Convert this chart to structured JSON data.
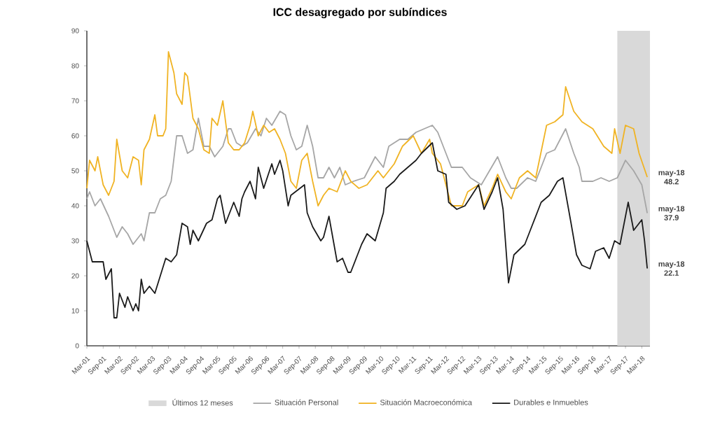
{
  "chart_data": {
    "type": "line",
    "title": "ICC desagregado por subíndices",
    "xlim": [
      "2001-03",
      "2018-06"
    ],
    "ylim": [
      0,
      90
    ],
    "yticks": [
      0,
      10,
      20,
      30,
      40,
      50,
      60,
      70,
      80,
      90
    ],
    "xticks": [
      {
        "value": "2001-03",
        "label": "Mar-01"
      },
      {
        "value": "2001-09",
        "label": "Sep-01"
      },
      {
        "value": "2002-03",
        "label": "Mar-02"
      },
      {
        "value": "2002-09",
        "label": "Sep-02"
      },
      {
        "value": "2003-03",
        "label": "Mar-03"
      },
      {
        "value": "2003-09",
        "label": "Sep-03"
      },
      {
        "value": "2004-03",
        "label": "Mar-04"
      },
      {
        "value": "2004-09",
        "label": "Sep-04"
      },
      {
        "value": "2005-03",
        "label": "Mar-05"
      },
      {
        "value": "2005-09",
        "label": "Sep-05"
      },
      {
        "value": "2006-03",
        "label": "Mar-06"
      },
      {
        "value": "2006-09",
        "label": "Sep-06"
      },
      {
        "value": "2007-03",
        "label": "Mar-07"
      },
      {
        "value": "2007-09",
        "label": "Sep-07"
      },
      {
        "value": "2008-03",
        "label": "Mar-08"
      },
      {
        "value": "2008-09",
        "label": "Sep-08"
      },
      {
        "value": "2009-03",
        "label": "Mar-09"
      },
      {
        "value": "2009-09",
        "label": "Sep-09"
      },
      {
        "value": "2010-03",
        "label": "Mar-10"
      },
      {
        "value": "2010-09",
        "label": "Sep-10"
      },
      {
        "value": "2011-03",
        "label": "Mar-11"
      },
      {
        "value": "2011-09",
        "label": "Sep-11"
      },
      {
        "value": "2012-03",
        "label": "Mar-12"
      },
      {
        "value": "2012-09",
        "label": "Sep-12"
      },
      {
        "value": "2013-03",
        "label": "Mar-13"
      },
      {
        "value": "2013-09",
        "label": "Sep-13"
      },
      {
        "value": "2014-03",
        "label": "Mar-14"
      },
      {
        "value": "2014-09",
        "label": "Sep-14"
      },
      {
        "value": "2015-03",
        "label": "Mar-15"
      },
      {
        "value": "2015-09",
        "label": "Sep-15"
      },
      {
        "value": "2016-03",
        "label": "Mar-16"
      },
      {
        "value": "2016-09",
        "label": "Sep-16"
      },
      {
        "value": "2017-03",
        "label": "Mar-17"
      },
      {
        "value": "2017-09",
        "label": "Sep-17"
      },
      {
        "value": "2018-03",
        "label": "Mar-18"
      }
    ],
    "bands": [
      {
        "axis": "x",
        "from": "2017-06",
        "to": "2018-06",
        "label": "Últimos 12 meses",
        "color": "#d9d9d9"
      }
    ],
    "series": [
      {
        "name": "Situación Personal",
        "color": "#a6a6a6",
        "x": [
          "2001-03",
          "2001-04",
          "2001-06",
          "2001-08",
          "2001-11",
          "2002-02",
          "2002-04",
          "2002-06",
          "2002-08",
          "2002-10",
          "2002-11",
          "2002-12",
          "2003-02",
          "2003-04",
          "2003-06",
          "2003-08",
          "2003-10",
          "2003-12",
          "2004-02",
          "2004-04",
          "2004-06",
          "2004-08",
          "2004-10",
          "2004-12",
          "2005-02",
          "2005-05",
          "2005-07",
          "2005-08",
          "2005-10",
          "2005-12",
          "2006-02",
          "2006-05",
          "2006-07",
          "2006-09",
          "2006-11",
          "2007-02",
          "2007-04",
          "2007-06",
          "2007-08",
          "2007-10",
          "2007-12",
          "2008-02",
          "2008-04",
          "2008-06",
          "2008-08",
          "2008-10",
          "2008-12",
          "2009-02",
          "2009-05",
          "2009-09",
          "2010-01",
          "2010-04",
          "2010-06",
          "2010-10",
          "2011-01",
          "2011-04",
          "2011-10",
          "2011-12",
          "2012-03",
          "2012-05",
          "2012-09",
          "2012-12",
          "2013-04",
          "2013-07",
          "2013-10",
          "2014-01",
          "2014-03",
          "2014-05",
          "2014-09",
          "2014-12",
          "2015-04",
          "2015-07",
          "2015-11",
          "2016-02",
          "2016-04",
          "2016-05",
          "2016-09",
          "2016-12",
          "2017-03",
          "2017-06",
          "2017-09",
          "2017-12",
          "2018-03",
          "2018-05"
        ],
        "values": [
          42,
          44,
          40,
          42,
          37,
          31,
          34,
          32,
          29,
          31,
          32,
          30,
          38,
          38,
          42,
          43,
          47,
          60,
          60,
          55,
          56,
          65,
          57,
          57,
          54,
          57,
          62,
          62,
          58,
          57,
          58,
          62,
          60,
          65,
          63,
          67,
          66,
          60,
          56,
          57,
          63,
          57,
          48,
          48,
          51,
          48,
          51,
          46,
          47,
          48,
          54,
          51,
          57,
          59,
          59,
          61,
          63,
          61,
          55,
          51,
          51,
          48,
          46,
          50,
          54,
          48,
          45,
          45,
          48,
          47,
          55,
          56,
          62,
          55,
          51,
          47,
          47,
          48,
          47,
          48,
          53,
          50,
          46,
          37.9
        ]
      },
      {
        "name": "Situación Macroeconómica",
        "color": "#f0b323",
        "x": [
          "2001-03",
          "2001-04",
          "2001-06",
          "2001-07",
          "2001-09",
          "2001-11",
          "2002-01",
          "2002-02",
          "2002-04",
          "2002-06",
          "2002-08",
          "2002-10",
          "2002-11",
          "2002-12",
          "2003-02",
          "2003-04",
          "2003-05",
          "2003-07",
          "2003-08",
          "2003-09",
          "2003-11",
          "2003-12",
          "2004-02",
          "2004-03",
          "2004-04",
          "2004-06",
          "2004-08",
          "2004-10",
          "2004-12",
          "2005-01",
          "2005-03",
          "2005-05",
          "2005-07",
          "2005-09",
          "2005-11",
          "2006-01",
          "2006-03",
          "2006-04",
          "2006-06",
          "2006-08",
          "2006-10",
          "2006-12",
          "2007-02",
          "2007-04",
          "2007-06",
          "2007-08",
          "2007-10",
          "2007-12",
          "2008-02",
          "2008-04",
          "2008-06",
          "2008-08",
          "2008-11",
          "2009-02",
          "2009-04",
          "2009-07",
          "2009-10",
          "2010-02",
          "2010-04",
          "2010-08",
          "2010-11",
          "2011-03",
          "2011-06",
          "2011-09",
          "2011-10",
          "2012-01",
          "2012-04",
          "2012-05",
          "2012-09",
          "2012-11",
          "2013-03",
          "2013-05",
          "2013-08",
          "2013-10",
          "2014-01",
          "2014-03",
          "2014-06",
          "2014-09",
          "2014-12",
          "2015-04",
          "2015-07",
          "2015-10",
          "2015-11",
          "2016-02",
          "2016-05",
          "2016-09",
          "2017-01",
          "2017-04",
          "2017-05",
          "2017-07",
          "2017-09",
          "2017-12",
          "2018-02",
          "2018-05"
        ],
        "values": [
          45,
          53,
          50,
          54,
          46,
          43,
          47,
          59,
          50,
          48,
          54,
          53,
          46,
          56,
          59,
          66,
          60,
          60,
          62,
          84,
          78,
          72,
          69,
          78,
          77,
          65,
          62,
          56,
          55,
          65,
          63,
          70,
          58,
          56,
          56,
          58,
          63,
          67,
          60,
          63,
          61,
          62,
          59,
          55,
          47,
          45,
          53,
          55,
          47,
          40,
          43,
          45,
          44,
          50,
          47,
          45,
          46,
          50,
          48,
          52,
          57,
          60,
          55,
          59,
          55,
          52,
          43,
          40,
          40,
          44,
          46,
          40,
          45,
          49,
          44,
          42,
          48,
          50,
          48,
          63,
          64,
          66,
          74,
          67,
          64,
          62,
          57,
          55,
          62,
          55,
          63,
          62,
          55,
          48.2
        ]
      },
      {
        "name": "Durables e Inmuebles",
        "color": "#1a1a1a",
        "x": [
          "2001-03",
          "2001-05",
          "2001-09",
          "2001-10",
          "2001-12",
          "2002-01",
          "2002-02",
          "2002-03",
          "2002-05",
          "2002-06",
          "2002-08",
          "2002-09",
          "2002-10",
          "2002-11",
          "2002-12",
          "2003-02",
          "2003-04",
          "2003-06",
          "2003-08",
          "2003-10",
          "2003-12",
          "2004-02",
          "2004-04",
          "2004-05",
          "2004-06",
          "2004-08",
          "2004-11",
          "2005-01",
          "2005-03",
          "2005-04",
          "2005-06",
          "2005-09",
          "2005-11",
          "2005-12",
          "2006-01",
          "2006-03",
          "2006-05",
          "2006-06",
          "2006-08",
          "2006-11",
          "2006-12",
          "2007-02",
          "2007-03",
          "2007-05",
          "2007-06",
          "2007-11",
          "2007-12",
          "2008-02",
          "2008-05",
          "2008-06",
          "2008-08",
          "2008-11",
          "2009-01",
          "2009-03",
          "2009-04",
          "2009-07",
          "2009-08",
          "2009-10",
          "2010-01",
          "2010-04",
          "2010-05",
          "2010-08",
          "2010-10",
          "2011-01",
          "2011-04",
          "2011-06",
          "2011-10",
          "2011-12",
          "2012-03",
          "2012-04",
          "2012-07",
          "2012-10",
          "2013-03",
          "2013-05",
          "2013-08",
          "2013-10",
          "2013-12",
          "2014-02",
          "2014-04",
          "2014-08",
          "2014-10",
          "2015-02",
          "2015-05",
          "2015-08",
          "2015-10",
          "2016-01",
          "2016-03",
          "2016-05",
          "2016-08",
          "2016-10",
          "2017-01",
          "2017-03",
          "2017-05",
          "2017-07",
          "2017-10",
          "2017-12",
          "2018-03",
          "2018-04",
          "2018-05"
        ],
        "values": [
          30,
          24,
          24,
          19,
          22,
          8,
          8,
          15,
          11,
          14,
          10,
          12,
          10,
          19,
          15,
          17,
          15,
          20,
          25,
          24,
          26,
          35,
          34,
          29,
          33,
          30,
          35,
          36,
          42,
          43,
          35,
          41,
          37,
          42,
          44,
          47,
          42,
          51,
          45,
          52,
          49,
          53,
          50,
          40,
          43,
          46,
          38,
          34,
          30,
          31,
          37,
          24,
          25,
          21,
          21,
          27,
          29,
          32,
          30,
          38,
          45,
          47,
          49,
          51,
          53,
          55,
          58,
          50,
          49,
          41,
          39,
          40,
          46,
          39,
          44,
          48,
          39,
          18,
          26,
          29,
          33,
          41,
          43,
          47,
          48,
          35,
          26,
          23,
          22,
          27,
          28,
          25,
          30,
          29,
          41,
          33,
          36,
          30,
          22.1
        ]
      }
    ],
    "annotations": [
      {
        "text": "may-18 48.2",
        "x": "2018-05",
        "y": 48.2
      },
      {
        "text": "may-18 37.9",
        "x": "2018-05",
        "y": 37.9
      },
      {
        "text": "may-18 22.1",
        "x": "2018-05",
        "y": 22.1
      }
    ],
    "legend": "bottom",
    "grid": false,
    "marker": "none",
    "line_style": "solid"
  }
}
